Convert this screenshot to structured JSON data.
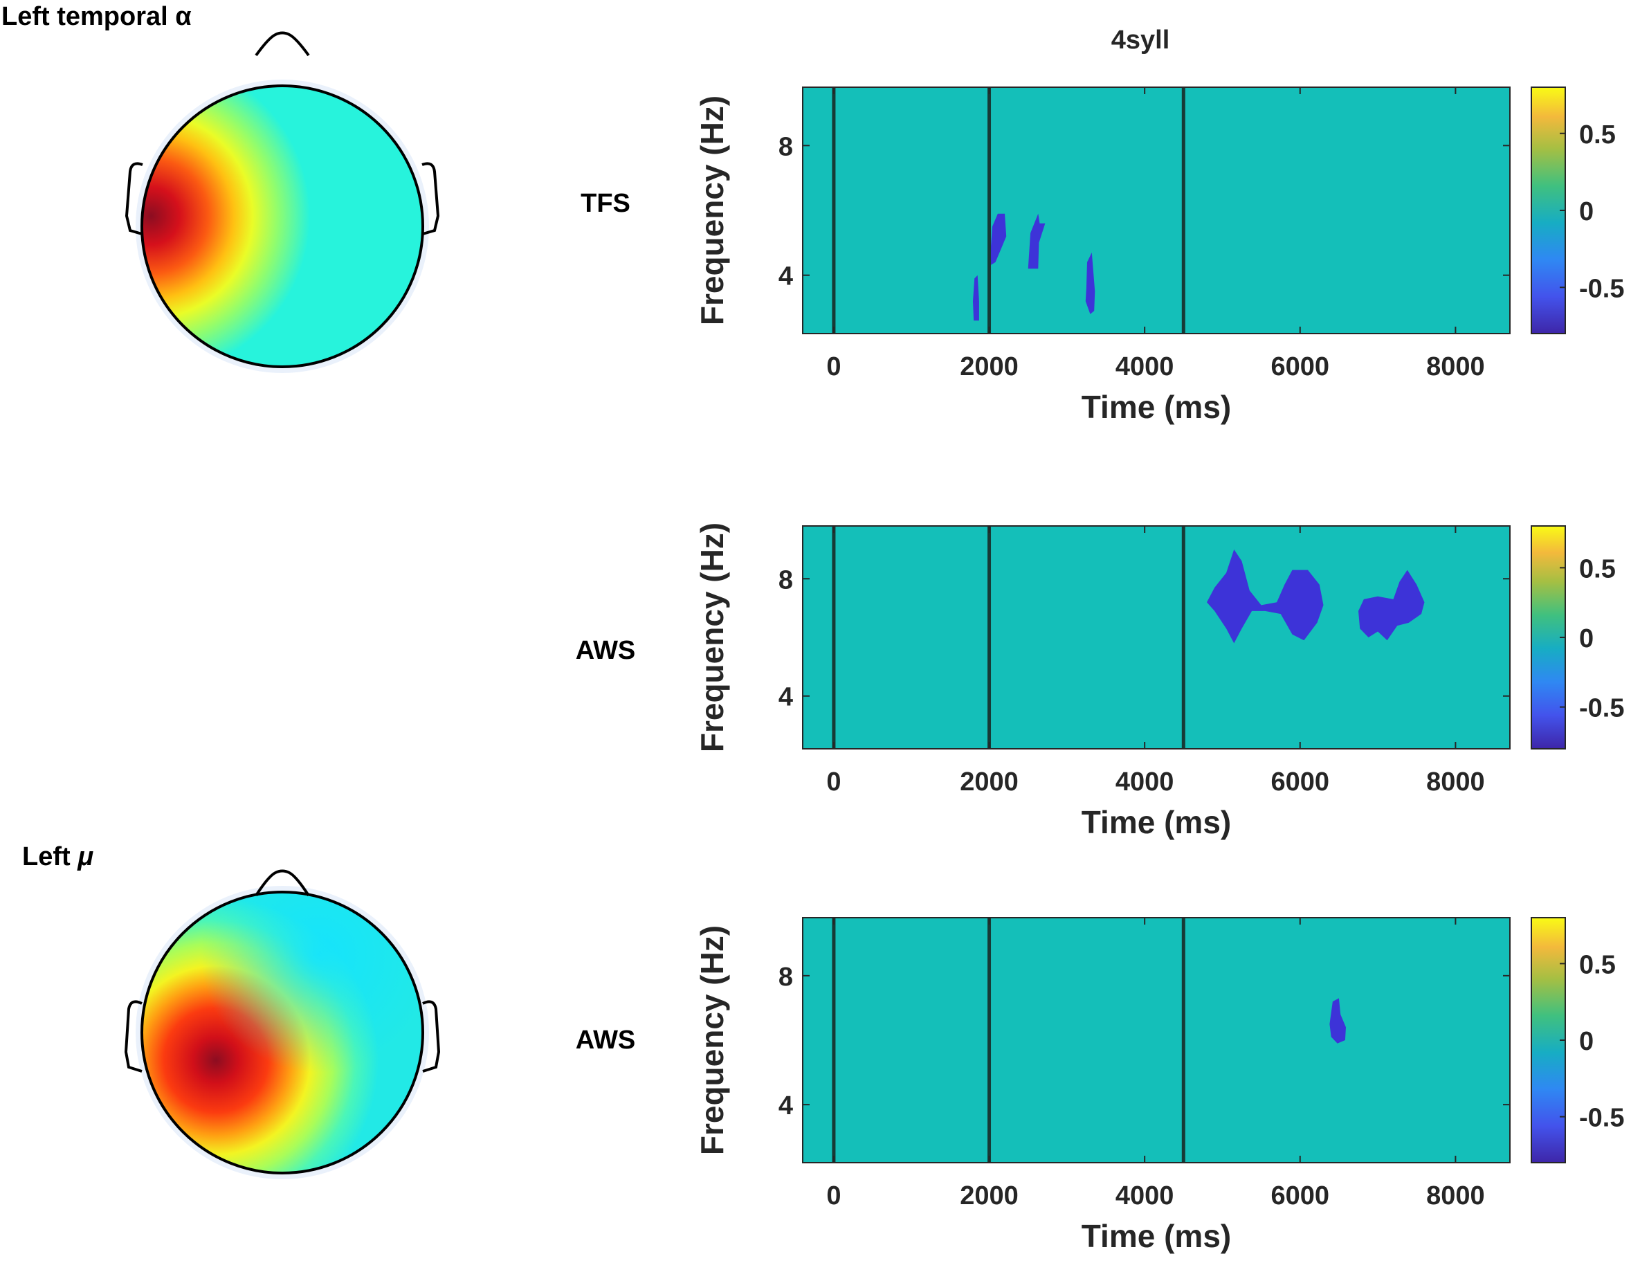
{
  "topo_maps": [
    {
      "label_text": "Left temporal",
      "label_symbol": "α",
      "colormap": "jet"
    },
    {
      "label_text": "Left",
      "label_symbol": "μ",
      "colormap": "jet"
    }
  ],
  "column_title": "4syll",
  "colors": {
    "background_field": "#14bfb9",
    "blob": "#3d33d8",
    "marker_line": "#173a36",
    "topo_base": "#27f3dc"
  },
  "chart_data": [
    {
      "type": "heatmap",
      "row_label": "TFS",
      "title": "4syll",
      "xlabel": "Time (ms)",
      "ylabel": "Frequency (Hz)",
      "xlim": [
        -400,
        8700
      ],
      "ylim": [
        2.2,
        9.8
      ],
      "xticks": [
        0,
        2000,
        4000,
        6000,
        8000
      ],
      "yticks": [
        4,
        8
      ],
      "vertical_markers": [
        0,
        2000,
        4500
      ],
      "background_value": 0,
      "colorbar": {
        "range": [
          -0.8,
          0.8
        ],
        "ticks": [
          0.5,
          0,
          -0.5
        ],
        "colormap": "parula"
      },
      "significant_clusters": [
        {
          "value": -0.75,
          "points": [
            [
              1810,
              3.9
            ],
            [
              1850,
              4.0
            ],
            [
              1870,
              3.2
            ],
            [
              1870,
              2.6
            ],
            [
              1800,
              2.6
            ],
            [
              1790,
              3.2
            ]
          ]
        },
        {
          "value": -0.75,
          "points": [
            [
              2010,
              4.5
            ],
            [
              2040,
              5.5
            ],
            [
              2110,
              5.9
            ],
            [
              2200,
              5.9
            ],
            [
              2220,
              5.2
            ],
            [
              2150,
              4.8
            ],
            [
              2080,
              4.4
            ],
            [
              2010,
              4.3
            ]
          ]
        },
        {
          "value": -0.75,
          "points": [
            [
              2500,
              4.2
            ],
            [
              2530,
              5.3
            ],
            [
              2630,
              5.9
            ],
            [
              2650,
              5.6
            ],
            [
              2720,
              5.6
            ],
            [
              2640,
              5.0
            ],
            [
              2630,
              4.2
            ]
          ]
        },
        {
          "value": -0.75,
          "points": [
            [
              3250,
              3.6
            ],
            [
              3260,
              4.4
            ],
            [
              3320,
              4.7
            ],
            [
              3360,
              3.5
            ],
            [
              3350,
              2.9
            ],
            [
              3300,
              2.8
            ],
            [
              3240,
              3.2
            ]
          ]
        }
      ]
    },
    {
      "type": "heatmap",
      "row_label": "AWS",
      "title": "",
      "xlabel": "Time (ms)",
      "ylabel": "Frequency (Hz)",
      "xlim": [
        -400,
        8700
      ],
      "ylim": [
        2.2,
        9.8
      ],
      "xticks": [
        0,
        2000,
        4000,
        6000,
        8000
      ],
      "yticks": [
        4,
        8
      ],
      "vertical_markers": [
        0,
        2000,
        4500
      ],
      "background_value": 0,
      "colorbar": {
        "range": [
          -0.8,
          0.8
        ],
        "ticks": [
          0.5,
          0,
          -0.5
        ],
        "colormap": "parula"
      },
      "significant_clusters": [
        {
          "value": -0.75,
          "points": [
            [
              4800,
              7.2
            ],
            [
              4900,
              7.7
            ],
            [
              5050,
              8.2
            ],
            [
              5150,
              9.0
            ],
            [
              5250,
              8.6
            ],
            [
              5350,
              7.6
            ],
            [
              5500,
              7.1
            ],
            [
              5700,
              7.2
            ],
            [
              5800,
              7.8
            ],
            [
              5900,
              8.3
            ],
            [
              6100,
              8.3
            ],
            [
              6250,
              7.8
            ],
            [
              6300,
              7.1
            ],
            [
              6220,
              6.5
            ],
            [
              6050,
              5.9
            ],
            [
              5900,
              6.1
            ],
            [
              5750,
              6.8
            ],
            [
              5550,
              6.9
            ],
            [
              5380,
              6.9
            ],
            [
              5250,
              6.3
            ],
            [
              5150,
              5.8
            ],
            [
              5050,
              6.3
            ],
            [
              4900,
              6.9
            ]
          ]
        },
        {
          "value": -0.75,
          "points": [
            [
              6750,
              6.9
            ],
            [
              6820,
              7.3
            ],
            [
              7000,
              7.4
            ],
            [
              7200,
              7.3
            ],
            [
              7280,
              7.9
            ],
            [
              7380,
              8.3
            ],
            [
              7500,
              7.8
            ],
            [
              7600,
              7.2
            ],
            [
              7560,
              6.8
            ],
            [
              7400,
              6.5
            ],
            [
              7250,
              6.4
            ],
            [
              7120,
              5.9
            ],
            [
              7000,
              6.2
            ],
            [
              6880,
              6.0
            ],
            [
              6770,
              6.3
            ]
          ]
        }
      ]
    },
    {
      "type": "heatmap",
      "row_label": "AWS",
      "title": "",
      "xlabel": "Time (ms)",
      "ylabel": "Frequency (Hz)",
      "xlim": [
        -400,
        8700
      ],
      "ylim": [
        2.2,
        9.8
      ],
      "xticks": [
        0,
        2000,
        4000,
        6000,
        8000
      ],
      "yticks": [
        4,
        8
      ],
      "vertical_markers": [
        0,
        2000,
        4500
      ],
      "background_value": 0,
      "colorbar": {
        "range": [
          -0.8,
          0.8
        ],
        "ticks": [
          0.5,
          0,
          -0.5
        ],
        "colormap": "parula"
      },
      "significant_clusters": [
        {
          "value": -0.75,
          "points": [
            [
              6380,
              6.5
            ],
            [
              6420,
              7.2
            ],
            [
              6500,
              7.3
            ],
            [
              6520,
              6.8
            ],
            [
              6590,
              6.4
            ],
            [
              6580,
              6.0
            ],
            [
              6480,
              5.9
            ],
            [
              6400,
              6.1
            ]
          ]
        }
      ]
    }
  ]
}
